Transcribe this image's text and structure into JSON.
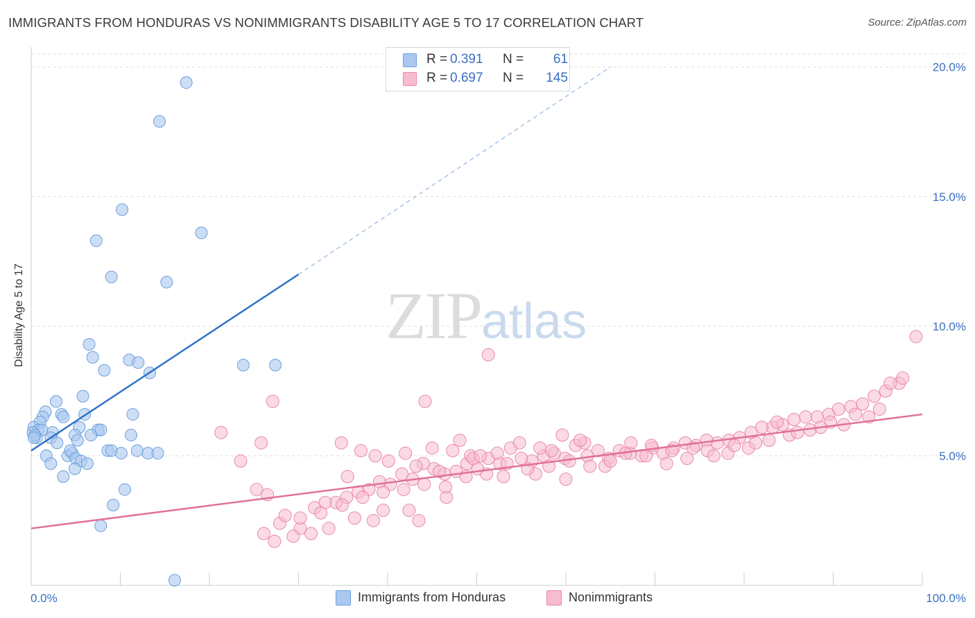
{
  "header": {
    "title": "IMMIGRANTS FROM HONDURAS VS NONIMMIGRANTS DISABILITY AGE 5 TO 17 CORRELATION CHART",
    "source": "Source: ZipAtlas.com"
  },
  "watermark": {
    "zip": "ZIP",
    "atlas": "atlas"
  },
  "legend": {
    "rows": [
      {
        "r_label": "R =",
        "r_value": "0.391",
        "n_label": "N =",
        "n_value": "61",
        "color": "#aac8f0"
      },
      {
        "r_label": "R =",
        "r_value": "0.697",
        "n_label": "N =",
        "n_value": "145",
        "color": "#f7bccd"
      }
    ]
  },
  "bottom_legend": {
    "items": [
      {
        "label": "Immigrants from Honduras",
        "color": "#aac8f0"
      },
      {
        "label": "Nonimmigrants",
        "color": "#f7bccd"
      }
    ]
  },
  "colors": {
    "blue_fill": "#aac8f0",
    "blue_stroke": "#6b9fdc",
    "blue_line": "#2f73c8",
    "pink_fill": "#f7bccd",
    "pink_stroke": "#e889a6",
    "pink_line": "#e0709a",
    "axis_text": "#3a6fc4",
    "grid": "#dddddd"
  },
  "chart_data": {
    "type": "scatter",
    "title": "IMMIGRANTS FROM HONDURAS VS NONIMMIGRANTS DISABILITY AGE 5 TO 17 CORRELATION CHART",
    "xlabel": "",
    "ylabel": "Disability Age 5 to 17",
    "xlim": [
      0,
      100
    ],
    "ylim": [
      0,
      20.5
    ],
    "x_tick_labels": [
      "0.0%",
      "100.0%"
    ],
    "y_ticks": [
      5,
      10,
      15,
      20
    ],
    "y_tick_labels": [
      "5.0%",
      "10.0%",
      "15.0%",
      "20.0%"
    ],
    "grid": true,
    "legend_position": "top-center",
    "series": [
      {
        "name": "Immigrants from Honduras",
        "r": 0.391,
        "n": 61,
        "trend": {
          "x0": 0,
          "y0": 5.2,
          "x1": 30,
          "y1": 12.0,
          "dashed_to_x": 65,
          "dashed_to_y": 20.0
        },
        "points": [
          [
            17.4,
            19.4
          ],
          [
            14.4,
            17.9
          ],
          [
            10.2,
            14.5
          ],
          [
            19.1,
            13.6
          ],
          [
            7.3,
            13.3
          ],
          [
            9.0,
            11.9
          ],
          [
            15.2,
            11.7
          ],
          [
            6.5,
            9.3
          ],
          [
            6.9,
            8.8
          ],
          [
            11.0,
            8.7
          ],
          [
            12.0,
            8.6
          ],
          [
            23.8,
            8.5
          ],
          [
            27.4,
            8.5
          ],
          [
            8.2,
            8.3
          ],
          [
            13.3,
            8.2
          ],
          [
            5.8,
            7.3
          ],
          [
            2.8,
            7.1
          ],
          [
            11.4,
            6.6
          ],
          [
            1.6,
            6.7
          ],
          [
            6.0,
            6.6
          ],
          [
            3.4,
            6.6
          ],
          [
            1.3,
            6.5
          ],
          [
            3.6,
            6.5
          ],
          [
            1.0,
            6.3
          ],
          [
            0.3,
            6.1
          ],
          [
            0.8,
            6.0
          ],
          [
            1.2,
            6.0
          ],
          [
            5.4,
            6.1
          ],
          [
            7.5,
            6.0
          ],
          [
            0.2,
            5.9
          ],
          [
            2.4,
            5.9
          ],
          [
            7.8,
            6.0
          ],
          [
            0.6,
            5.7
          ],
          [
            0.4,
            5.8
          ],
          [
            2.2,
            5.7
          ],
          [
            4.9,
            5.8
          ],
          [
            6.7,
            5.8
          ],
          [
            11.2,
            5.8
          ],
          [
            0.3,
            5.7
          ],
          [
            5.2,
            5.6
          ],
          [
            2.9,
            5.5
          ],
          [
            8.6,
            5.2
          ],
          [
            9.0,
            5.2
          ],
          [
            10.1,
            5.1
          ],
          [
            11.9,
            5.2
          ],
          [
            13.1,
            5.1
          ],
          [
            14.2,
            5.1
          ],
          [
            1.7,
            5.0
          ],
          [
            4.1,
            5.0
          ],
          [
            4.6,
            5.1
          ],
          [
            4.4,
            5.2
          ],
          [
            5.0,
            4.9
          ],
          [
            5.6,
            4.8
          ],
          [
            6.3,
            4.7
          ],
          [
            2.2,
            4.7
          ],
          [
            4.9,
            4.5
          ],
          [
            3.6,
            4.2
          ],
          [
            10.5,
            3.7
          ],
          [
            9.2,
            3.1
          ],
          [
            7.8,
            2.3
          ],
          [
            16.1,
            0.2
          ]
        ]
      },
      {
        "name": "Nonimmigrants",
        "r": 0.697,
        "n": 145,
        "trend": {
          "x0": 0,
          "y0": 2.2,
          "x1": 100,
          "y1": 6.6
        },
        "points": [
          [
            99.3,
            9.6
          ],
          [
            51.3,
            8.9
          ],
          [
            97.4,
            7.8
          ],
          [
            95.9,
            7.5
          ],
          [
            94.6,
            7.3
          ],
          [
            93.3,
            7.0
          ],
          [
            92.0,
            6.9
          ],
          [
            90.6,
            6.8
          ],
          [
            89.5,
            6.6
          ],
          [
            88.2,
            6.5
          ],
          [
            86.9,
            6.5
          ],
          [
            85.6,
            6.4
          ],
          [
            84.3,
            6.2
          ],
          [
            83.2,
            6.1
          ],
          [
            82.0,
            6.1
          ],
          [
            80.8,
            5.9
          ],
          [
            79.5,
            5.7
          ],
          [
            78.3,
            5.6
          ],
          [
            77.0,
            5.5
          ],
          [
            75.8,
            5.6
          ],
          [
            74.6,
            5.4
          ],
          [
            73.4,
            5.5
          ],
          [
            72.1,
            5.3
          ],
          [
            70.9,
            5.1
          ],
          [
            69.7,
            5.3
          ],
          [
            68.5,
            5.0
          ],
          [
            67.2,
            5.1
          ],
          [
            66.0,
            5.2
          ],
          [
            64.8,
            4.9
          ],
          [
            63.6,
            5.2
          ],
          [
            62.4,
            5.0
          ],
          [
            61.1,
            5.4
          ],
          [
            59.9,
            4.9
          ],
          [
            58.7,
            5.1
          ],
          [
            57.5,
            5.0
          ],
          [
            56.2,
            4.8
          ],
          [
            55.0,
            4.9
          ],
          [
            53.8,
            5.3
          ],
          [
            52.6,
            4.7
          ],
          [
            51.3,
            4.9
          ],
          [
            50.1,
            4.5
          ],
          [
            48.9,
            4.7
          ],
          [
            47.7,
            4.4
          ],
          [
            46.4,
            4.3
          ],
          [
            45.2,
            4.5
          ],
          [
            44.0,
            4.7
          ],
          [
            42.8,
            4.1
          ],
          [
            41.6,
            4.3
          ],
          [
            40.3,
            3.9
          ],
          [
            39.1,
            4.0
          ],
          [
            37.9,
            3.7
          ],
          [
            36.7,
            3.6
          ],
          [
            35.4,
            3.4
          ],
          [
            34.2,
            3.2
          ],
          [
            33.0,
            3.2
          ],
          [
            31.8,
            3.0
          ],
          [
            44.2,
            7.1
          ],
          [
            27.1,
            7.1
          ],
          [
            21.3,
            5.9
          ],
          [
            25.8,
            5.5
          ],
          [
            34.8,
            5.5
          ],
          [
            48.1,
            5.6
          ],
          [
            54.8,
            5.5
          ],
          [
            59.6,
            5.8
          ],
          [
            23.5,
            4.8
          ],
          [
            25.3,
            3.7
          ],
          [
            26.1,
            2.0
          ],
          [
            30.2,
            2.2
          ],
          [
            38.4,
            2.5
          ],
          [
            42.4,
            2.9
          ],
          [
            46.6,
            3.4
          ],
          [
            36.3,
            2.6
          ],
          [
            29.4,
            1.9
          ],
          [
            27.3,
            1.7
          ],
          [
            31.4,
            2.0
          ],
          [
            39.5,
            2.9
          ],
          [
            43.5,
            2.5
          ],
          [
            45.8,
            4.4
          ],
          [
            49.3,
            5.0
          ],
          [
            53.0,
            4.2
          ],
          [
            56.6,
            4.3
          ],
          [
            60.0,
            4.1
          ],
          [
            62.1,
            5.5
          ],
          [
            64.4,
            4.6
          ],
          [
            66.7,
            5.1
          ],
          [
            69.0,
            5.0
          ],
          [
            71.3,
            4.7
          ],
          [
            73.6,
            4.9
          ],
          [
            75.9,
            5.2
          ],
          [
            78.2,
            5.1
          ],
          [
            80.5,
            5.3
          ],
          [
            82.8,
            5.6
          ],
          [
            85.1,
            5.8
          ],
          [
            87.4,
            6.0
          ],
          [
            89.7,
            6.3
          ],
          [
            92.5,
            6.6
          ],
          [
            95.2,
            6.8
          ],
          [
            97.8,
            8.0
          ],
          [
            96.4,
            7.8
          ],
          [
            94.0,
            6.5
          ],
          [
            91.2,
            6.2
          ],
          [
            88.6,
            6.1
          ],
          [
            86.0,
            5.9
          ],
          [
            83.7,
            6.3
          ],
          [
            81.3,
            5.5
          ],
          [
            78.9,
            5.4
          ],
          [
            76.6,
            5.0
          ],
          [
            74.3,
            5.3
          ],
          [
            71.9,
            5.2
          ],
          [
            69.6,
            5.4
          ],
          [
            67.3,
            5.5
          ],
          [
            65.0,
            4.8
          ],
          [
            62.7,
            4.6
          ],
          [
            60.4,
            4.8
          ],
          [
            58.1,
            4.6
          ],
          [
            55.7,
            4.5
          ],
          [
            53.4,
            4.7
          ],
          [
            51.1,
            4.3
          ],
          [
            48.8,
            4.2
          ],
          [
            46.5,
            3.8
          ],
          [
            44.1,
            3.9
          ],
          [
            41.8,
            3.7
          ],
          [
            39.5,
            3.6
          ],
          [
            37.2,
            3.4
          ],
          [
            34.9,
            3.1
          ],
          [
            32.5,
            2.8
          ],
          [
            30.2,
            2.6
          ],
          [
            27.9,
            2.4
          ],
          [
            26.5,
            3.5
          ],
          [
            28.5,
            2.7
          ],
          [
            33.4,
            2.2
          ],
          [
            35.5,
            4.2
          ],
          [
            37.0,
            5.2
          ],
          [
            38.6,
            5.0
          ],
          [
            40.1,
            4.8
          ],
          [
            42.0,
            5.1
          ],
          [
            43.2,
            4.6
          ],
          [
            45.0,
            5.3
          ],
          [
            47.3,
            5.2
          ],
          [
            49.6,
            4.9
          ],
          [
            50.4,
            5.0
          ],
          [
            52.3,
            5.1
          ],
          [
            57.1,
            5.3
          ],
          [
            58.4,
            5.2
          ],
          [
            61.6,
            5.6
          ]
        ]
      }
    ]
  }
}
